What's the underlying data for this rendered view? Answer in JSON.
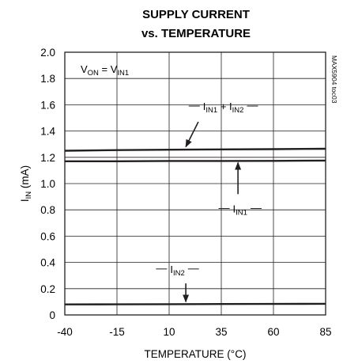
{
  "chart_data": {
    "type": "line",
    "title": [
      "SUPPLY CURRENT",
      "vs. TEMPERATURE"
    ],
    "xlabel": "TEMPERATURE (°C)",
    "ylabel": {
      "main": "I",
      "sub": "IN",
      "rest": " (mA)"
    },
    "xlim": [
      -40,
      85
    ],
    "ylim": [
      0,
      2.0
    ],
    "x_ticks": [
      -40,
      -15,
      10,
      35,
      60,
      85
    ],
    "x_tick_labels": [
      "-40",
      "-15",
      "10",
      "35",
      "60",
      "85"
    ],
    "y_ticks": [
      0,
      0.2,
      0.4,
      0.6,
      0.8,
      1.0,
      1.2,
      1.4,
      1.6,
      1.8,
      2.0
    ],
    "y_tick_labels": [
      "0",
      "0.2",
      "0.4",
      "0.6",
      "0.8",
      "1.0",
      "1.2",
      "1.4",
      "1.6",
      "1.8",
      "2.0"
    ],
    "grid": true,
    "condition": [
      {
        "t": "V"
      },
      {
        "t": "ON",
        "sub": true
      },
      {
        "t": " = V"
      },
      {
        "t": "IN1",
        "sub": true
      }
    ],
    "side_tag": "MAX5904 toc03",
    "series": [
      {
        "label": [
          {
            "t": "I"
          },
          {
            "t": "IN1",
            "sub": true
          },
          {
            "t": " + I"
          },
          {
            "t": "IN2",
            "sub": true
          }
        ],
        "x": [
          -40,
          -15,
          10,
          35,
          60,
          85
        ],
        "y": [
          1.25,
          1.255,
          1.258,
          1.26,
          1.262,
          1.265
        ],
        "label_at": {
          "x": 36,
          "y": 1.56
        },
        "arrow": {
          "x1": 24,
          "y1": 1.47,
          "x2": 18,
          "y2": 1.28
        }
      },
      {
        "label": [
          {
            "t": "I"
          },
          {
            "t": "IN1",
            "sub": true
          }
        ],
        "x": [
          -40,
          -15,
          10,
          35,
          60,
          85
        ],
        "y": [
          1.17,
          1.17,
          1.172,
          1.172,
          1.173,
          1.175
        ],
        "label_at": {
          "x": 44,
          "y": 0.78
        },
        "arrow": {
          "x1": 43,
          "y1": 0.92,
          "x2": 43,
          "y2": 1.16
        }
      },
      {
        "label": [
          {
            "t": "I"
          },
          {
            "t": "IN2",
            "sub": true
          }
        ],
        "x": [
          -40,
          -15,
          10,
          35,
          60,
          85
        ],
        "y": [
          0.08,
          0.081,
          0.082,
          0.083,
          0.084,
          0.085
        ],
        "label_at": {
          "x": 14,
          "y": 0.32
        },
        "arrow": {
          "x1": 18,
          "y1": 0.24,
          "x2": 18,
          "y2": 0.1
        }
      }
    ],
    "colors": {
      "ink": "#231f20",
      "grid": "#231f20",
      "background": "#ffffff"
    }
  }
}
